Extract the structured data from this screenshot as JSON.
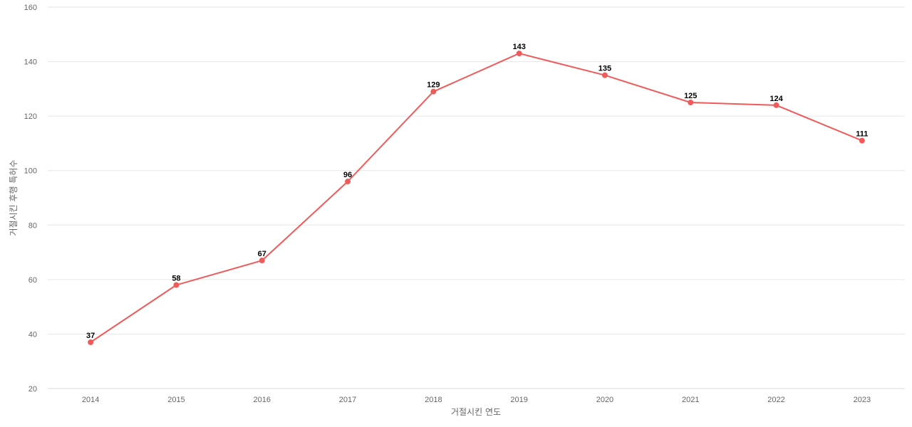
{
  "chart_data": {
    "type": "line",
    "categories": [
      "2014",
      "2015",
      "2016",
      "2017",
      "2018",
      "2019",
      "2020",
      "2021",
      "2022",
      "2023"
    ],
    "series": [
      {
        "values": [
          37,
          58,
          67,
          96,
          129,
          143,
          135,
          125,
          124,
          111
        ],
        "color": "#ef5b5b"
      }
    ],
    "title": "",
    "xlabel": "거절시킨 연도",
    "ylabel": "거절시킨 후행 특허수",
    "ylim": [
      20,
      160
    ],
    "yticks": [
      20,
      40,
      60,
      80,
      100,
      120,
      140,
      160
    ],
    "grid": true,
    "data_labels": true,
    "legend": "none"
  }
}
